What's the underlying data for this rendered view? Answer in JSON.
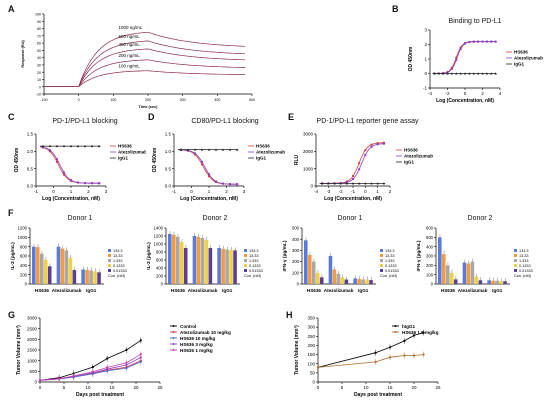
{
  "panels": {
    "A": {
      "letter": "A"
    },
    "B": {
      "letter": "B",
      "title": "Binding to PD-L1"
    },
    "C": {
      "letter": "C",
      "title": "PD-1/PD-L1 blocking"
    },
    "D": {
      "letter": "D",
      "title": "CD80/PD-L1 blocking"
    },
    "E": {
      "letter": "E",
      "title": "PD-1/PD-L1 reporter gene assay"
    },
    "F": {
      "letter": "F",
      "donor1_il2": "Donor 1",
      "donor2_il2": "Donor 2",
      "donor1_ifn": "Donor 1",
      "donor2_ifn": "Donor 2"
    },
    "G": {
      "letter": "G"
    },
    "H": {
      "letter": "H"
    }
  },
  "chart_data": [
    {
      "id": "A",
      "type": "line",
      "xlabel": "Time (sec)",
      "ylabel": "Response (RU)",
      "xlim": [
        -100,
        500
      ],
      "ylim": [
        -10,
        100
      ],
      "xticks": [
        "-100",
        "0",
        "100",
        "200",
        "300",
        "400",
        "500"
      ],
      "yticks": [
        "-10",
        "0",
        "10",
        "20",
        "30",
        "40",
        "50",
        "60",
        "70",
        "80",
        "90",
        "100"
      ],
      "series": [
        {
          "name": "1000 ng/mL",
          "peak": 75,
          "end": 53
        },
        {
          "name": "600 ng/mL",
          "peak": 63,
          "end": 43
        },
        {
          "name": "400 ng/mL",
          "peak": 52,
          "end": 35
        },
        {
          "name": "200 ng/mL",
          "peak": 37,
          "end": 25
        },
        {
          "name": "100 ng/mL",
          "peak": 22,
          "end": 16
        }
      ]
    },
    {
      "id": "B",
      "type": "line",
      "title": "Binding to PD-L1",
      "xlabel": "Log (Concentration, nM)",
      "ylabel": "OD 450nm",
      "xlim": [
        -4,
        4
      ],
      "ylim": [
        -1,
        3
      ],
      "xticks": [
        "-4",
        "-2",
        "0",
        "2",
        "4"
      ],
      "yticks": [
        "-1",
        "0",
        "1",
        "2",
        "3"
      ],
      "series": [
        {
          "name": "HS636",
          "bottom": 0,
          "top": 2.2,
          "ec50": -1.0
        },
        {
          "name": "Atezolizumab",
          "bottom": 0,
          "top": 2.2,
          "ec50": -0.9
        },
        {
          "name": "IgG1",
          "flat": 0.0
        }
      ]
    },
    {
      "id": "C",
      "type": "line",
      "title": "PD-1/PD-L1 blocking",
      "xlabel": "Log (Concentration, nM)",
      "ylabel": "OD 450nm",
      "xlim": [
        -1.5,
        3.5
      ],
      "ylim": [
        0,
        1.5
      ],
      "xticks": [
        "-1",
        "0",
        "1",
        "2",
        "3"
      ],
      "yticks": [
        "0.0",
        "0.5",
        "1.0",
        "1.5"
      ],
      "series": [
        {
          "name": "HS636",
          "bottom": 0.08,
          "top": 1.15,
          "ic50": 0.1
        },
        {
          "name": "Atezolizumab",
          "bottom": 0.08,
          "top": 1.15,
          "ic50": 0.2
        },
        {
          "name": "IgG1",
          "flat": 1.15
        }
      ]
    },
    {
      "id": "D",
      "type": "line",
      "title": "CD80/PD-L1 blocking",
      "xlabel": "Log (Concentration, nM)",
      "ylabel": "OD 450nm",
      "xlim": [
        -1.5,
        3.5
      ],
      "ylim": [
        0,
        1.5
      ],
      "xticks": [
        "-1",
        "0",
        "1",
        "2",
        "3"
      ],
      "yticks": [
        "0.0",
        "0.5",
        "1.0",
        "1.5"
      ],
      "series": [
        {
          "name": "HS636",
          "bottom": 0.05,
          "top": 1.05,
          "ic50": 0.6
        },
        {
          "name": "Atezolizumab",
          "bottom": 0.05,
          "top": 1.05,
          "ic50": 0.7
        },
        {
          "name": "IgG1",
          "flat": 1.05
        }
      ]
    },
    {
      "id": "E",
      "type": "line",
      "title": "PD-1/PD-L1 reporter gene assay",
      "xlabel": "Log (Concentration, nM)",
      "ylabel": "RLU",
      "xlim": [
        -4,
        2
      ],
      "ylim": [
        0,
        3000
      ],
      "xticks": [
        "-4",
        "-3",
        "-2",
        "-1",
        "0",
        "1",
        "2"
      ],
      "yticks": [
        "0",
        "1000",
        "2000",
        "3000"
      ],
      "series": [
        {
          "name": "HS636",
          "bottom": 150,
          "top": 2500,
          "ec50": -0.5
        },
        {
          "name": "Atezolizumab",
          "bottom": 150,
          "top": 2450,
          "ec50": -0.3
        },
        {
          "name": "IgG1",
          "flat": 150
        }
      ]
    },
    {
      "id": "F1",
      "type": "bar",
      "title": "Donor 1",
      "ylabel": "IL-2 (pg/mL)",
      "ylim": [
        0,
        1200
      ],
      "yticks": [
        "0",
        "200",
        "400",
        "600",
        "800",
        "1000",
        "1200"
      ],
      "categories": [
        "HS636",
        "Atezolizumab",
        "IgG1"
      ],
      "series": [
        {
          "name": "133.3",
          "values": [
            800,
            800,
            310
          ]
        },
        {
          "name": "13.33",
          "values": [
            790,
            760,
            300
          ]
        },
        {
          "name": "1.333",
          "values": [
            650,
            720,
            290
          ]
        },
        {
          "name": "0.1333",
          "values": [
            520,
            560,
            270
          ]
        },
        {
          "name": "0.01333",
          "values": [
            380,
            300,
            250
          ]
        }
      ],
      "legend_unit": "Con. (nM)"
    },
    {
      "id": "F2",
      "type": "bar",
      "title": "Donor 2",
      "ylabel": "IL-2 (pg/mL)",
      "ylim": [
        0,
        1400
      ],
      "yticks": [
        "0",
        "200",
        "400",
        "600",
        "800",
        "1000",
        "1200",
        "1400"
      ],
      "categories": [
        "HS636",
        "Atezolizumab",
        "IgG1"
      ],
      "series": [
        {
          "name": "133.3",
          "values": [
            1250,
            1200,
            900
          ]
        },
        {
          "name": "13.33",
          "values": [
            1230,
            1180,
            880
          ]
        },
        {
          "name": "1.333",
          "values": [
            1180,
            1150,
            860
          ]
        },
        {
          "name": "0.1333",
          "values": [
            1050,
            1100,
            850
          ]
        },
        {
          "name": "0.01333",
          "values": [
            900,
            900,
            840
          ]
        }
      ],
      "legend_unit": "Con. (nM)"
    },
    {
      "id": "F3",
      "type": "bar",
      "title": "Donor 1",
      "ylabel": "IFN-γ (pg/mL)",
      "ylim": [
        0,
        500
      ],
      "yticks": [
        "0",
        "100",
        "200",
        "300",
        "400",
        "500"
      ],
      "categories": [
        "HS636",
        "Atezolizumab",
        "IgG1"
      ],
      "series": [
        {
          "name": "133.3",
          "values": [
            390,
            250,
            50
          ]
        },
        {
          "name": "13.33",
          "values": [
            260,
            130,
            45
          ]
        },
        {
          "name": "1.333",
          "values": [
            200,
            90,
            40
          ]
        },
        {
          "name": "0.1333",
          "values": [
            100,
            60,
            40
          ]
        },
        {
          "name": "0.01333",
          "values": [
            60,
            40,
            35
          ]
        }
      ],
      "legend_unit": "Con. (nM)"
    },
    {
      "id": "F4",
      "type": "bar",
      "title": "Donor 2",
      "ylabel": "IFN-γ (pg/mL)",
      "ylim": [
        0,
        600
      ],
      "yticks": [
        "0",
        "100",
        "200",
        "300",
        "400",
        "500",
        "600"
      ],
      "categories": [
        "HS636",
        "Atezolizumab",
        "IgG1"
      ],
      "series": [
        {
          "name": "133.3",
          "values": [
            500,
            230,
            40
          ]
        },
        {
          "name": "13.33",
          "values": [
            320,
            220,
            35
          ]
        },
        {
          "name": "1.333",
          "values": [
            200,
            240,
            35
          ]
        },
        {
          "name": "0.1333",
          "values": [
            120,
            80,
            30
          ]
        },
        {
          "name": "0.01333",
          "values": [
            50,
            40,
            30
          ]
        }
      ],
      "legend_unit": "Con. (nM)"
    },
    {
      "id": "G",
      "type": "line",
      "xlabel": "Days post treatment",
      "ylabel": "Tumor Volume (mm³)",
      "xlim": [
        0,
        25
      ],
      "ylim": [
        0,
        3000
      ],
      "xticks": [
        "0",
        "5",
        "10",
        "15",
        "20",
        "25"
      ],
      "yticks": [
        "0",
        "500",
        "1000",
        "1500",
        "2000",
        "2500",
        "3000"
      ],
      "x": [
        0,
        4,
        7,
        11,
        14,
        18,
        21
      ],
      "series": [
        {
          "name": "Control",
          "values": [
            80,
            200,
            400,
            700,
            1100,
            1500,
            1950
          ]
        },
        {
          "name": "Atezolizumab 10 mg/kg",
          "values": [
            80,
            150,
            250,
            400,
            550,
            700,
            1000
          ]
        },
        {
          "name": "HS636 10 mg/kg",
          "values": [
            80,
            140,
            230,
            380,
            520,
            650,
            950
          ]
        },
        {
          "name": "HS636 3 mg/kg",
          "values": [
            80,
            150,
            260,
            420,
            600,
            800,
            1150
          ]
        },
        {
          "name": "HS636 1 mg/kg",
          "values": [
            80,
            160,
            280,
            480,
            680,
            900,
            1300
          ]
        }
      ]
    },
    {
      "id": "H",
      "type": "line",
      "xlabel": "Days post treatment",
      "ylabel": "Tumor Volume (mm³)",
      "xlim": [
        0,
        25
      ],
      "ylim": [
        0,
        350
      ],
      "xticks": [
        "0",
        "5",
        "10",
        "15",
        "20",
        "25"
      ],
      "yticks": [
        "0",
        "50",
        "100",
        "150",
        "200",
        "250",
        "300",
        "350"
      ],
      "x": [
        0,
        12,
        15,
        18,
        20,
        22
      ],
      "series": [
        {
          "name": "hIgG1",
          "values": [
            80,
            160,
            190,
            225,
            255,
            270
          ]
        },
        {
          "name": "HS636 1.5 mg/kg",
          "values": [
            80,
            110,
            135,
            145,
            145,
            150
          ]
        }
      ]
    }
  ]
}
